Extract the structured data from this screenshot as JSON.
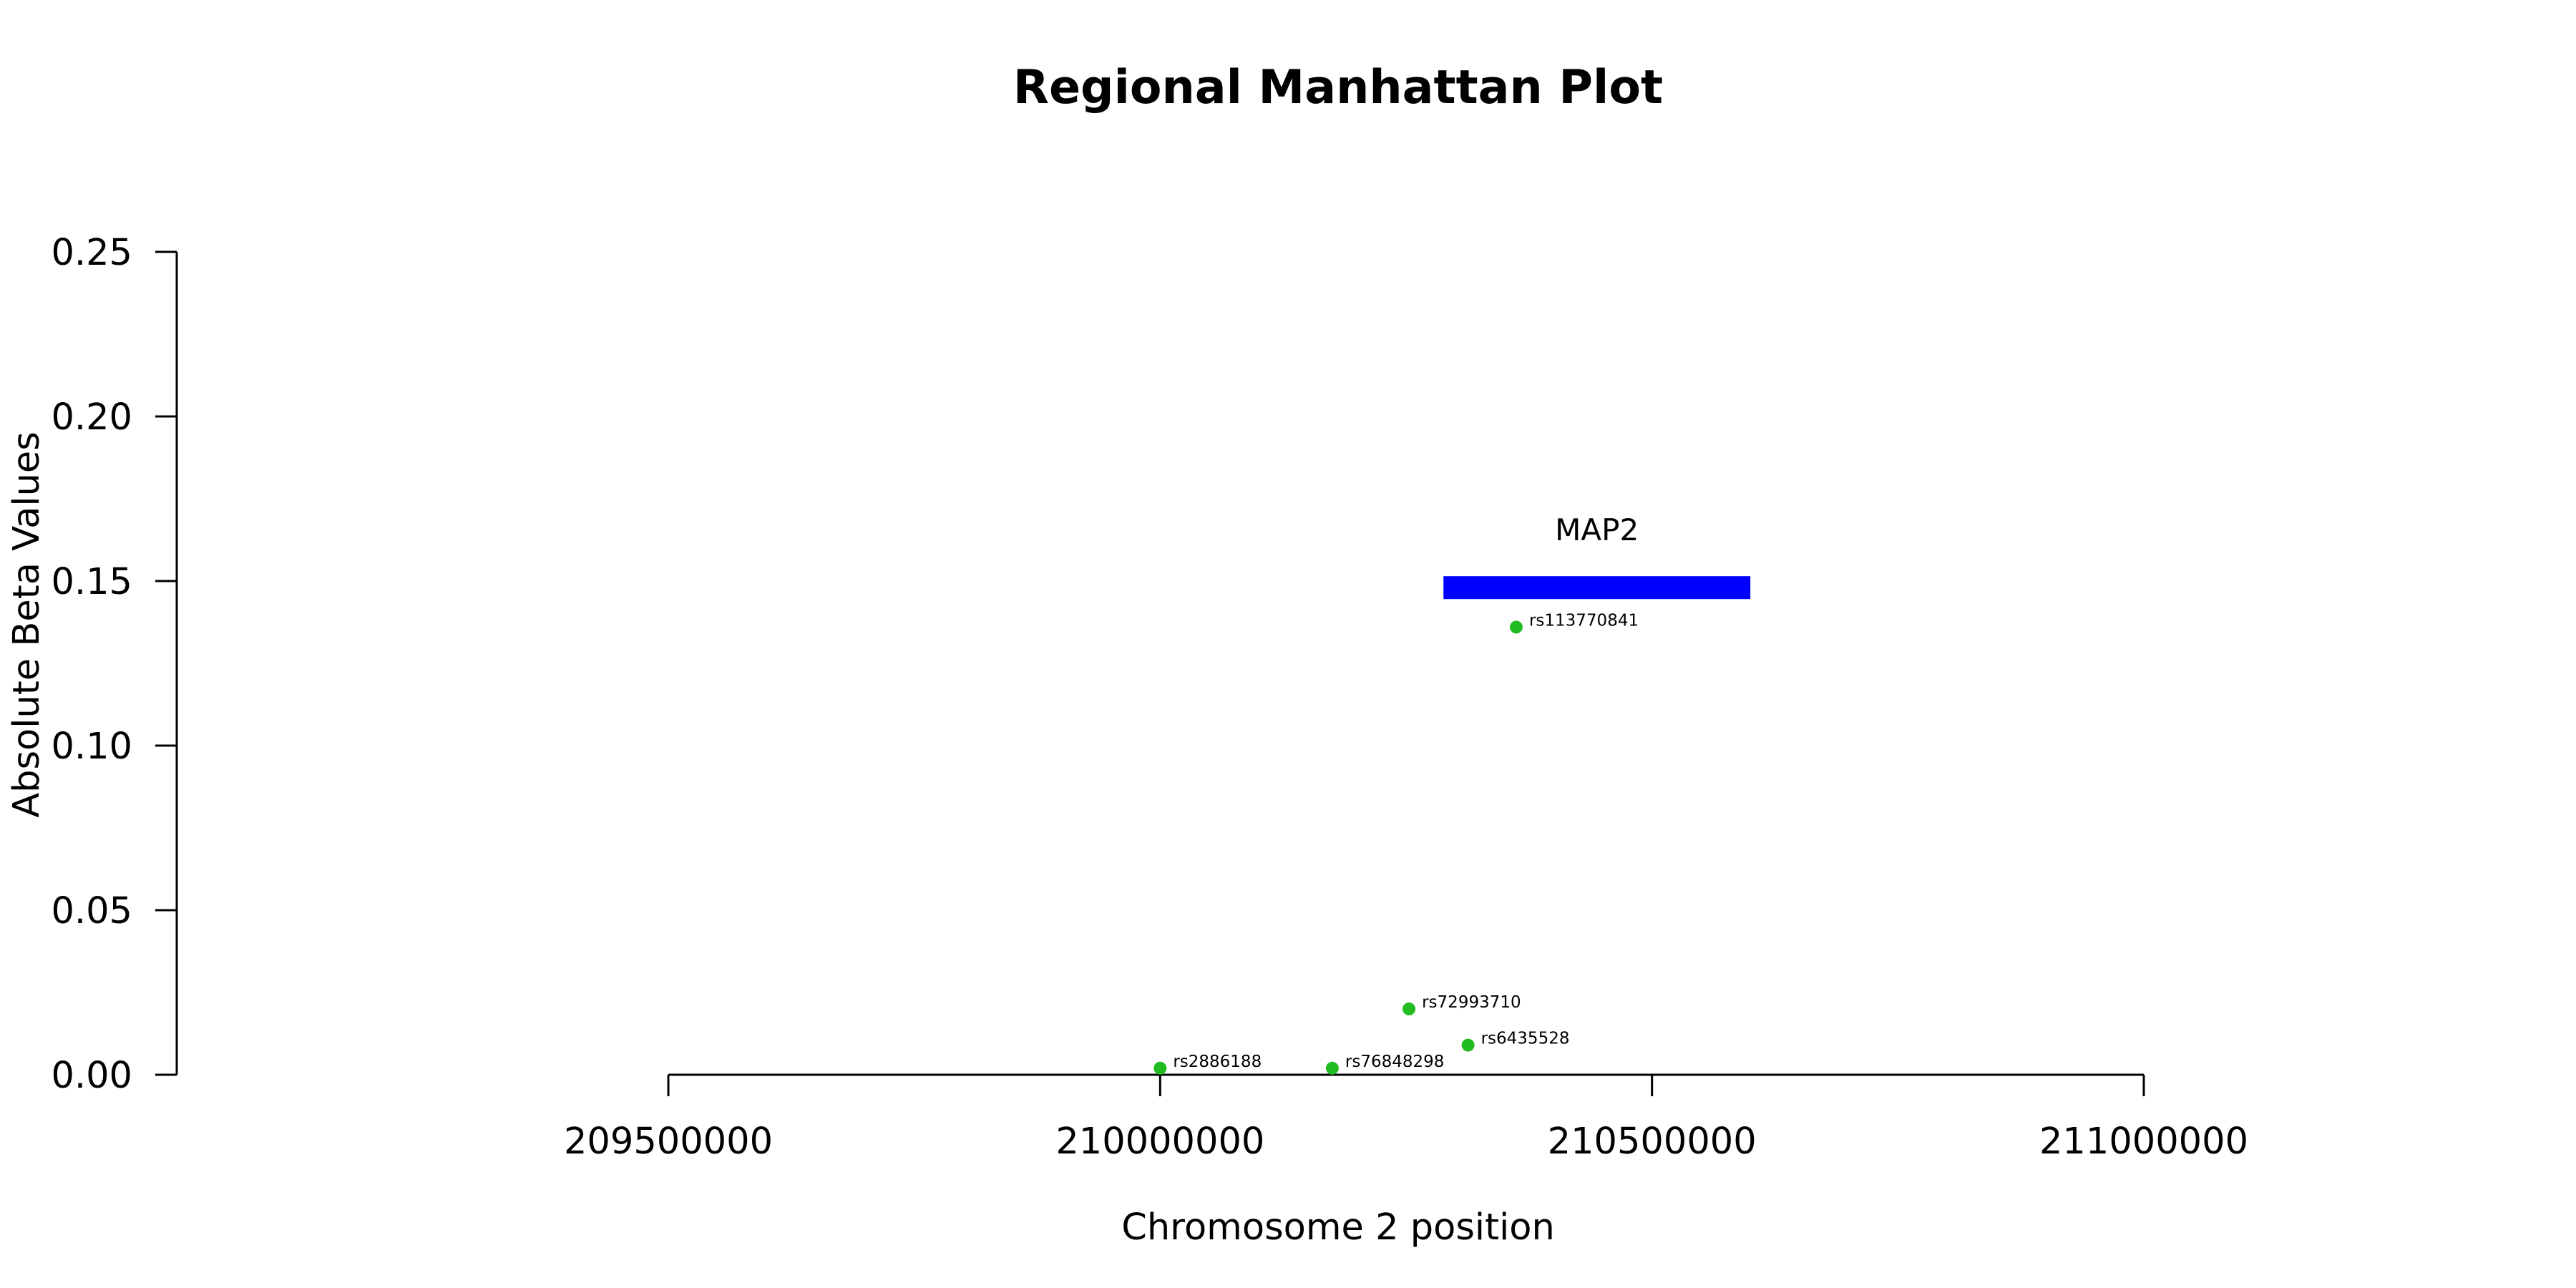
{
  "chart_data": {
    "type": "scatter",
    "title": "Regional Manhattan Plot",
    "xlabel": "Chromosome 2 position",
    "ylabel": "Absolute Beta Values",
    "xlim": [
      209500000,
      211000000
    ],
    "ylim": [
      0,
      0.25
    ],
    "x_ticks": [
      209500000,
      210000000,
      210500000,
      211000000
    ],
    "y_ticks": [
      0.0,
      0.05,
      0.1,
      0.15,
      0.2,
      0.25
    ],
    "x_tick_labels": [
      "209500000",
      "210000000",
      "210500000",
      "211000000"
    ],
    "y_tick_labels": [
      "0.00",
      "0.05",
      "0.10",
      "0.15",
      "0.20",
      "0.25"
    ],
    "grid": false,
    "point_color": "#22bb22",
    "points": [
      {
        "label": "rs2886188",
        "x": 210000000,
        "y": 0.002
      },
      {
        "label": "rs76848298",
        "x": 210175000,
        "y": 0.002
      },
      {
        "label": "rs72993710",
        "x": 210253000,
        "y": 0.02
      },
      {
        "label": "rs6435528",
        "x": 210313000,
        "y": 0.009
      },
      {
        "label": "rs113770841",
        "x": 210362000,
        "y": 0.136
      }
    ],
    "genes": [
      {
        "name": "MAP2",
        "start": 210288000,
        "end": 210600000,
        "y": 0.148,
        "color": "#0000ff"
      }
    ]
  }
}
